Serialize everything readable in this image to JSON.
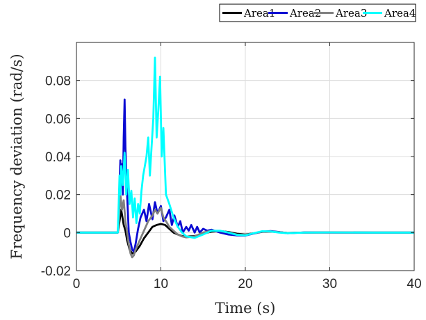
{
  "chart_data": {
    "type": "line",
    "title": "",
    "xlabel": "Time (s)",
    "ylabel": "Frequency deviation (rad/s)",
    "xlim": [
      0,
      40
    ],
    "ylim": [
      -0.02,
      0.1
    ],
    "xticks": [
      0,
      10,
      20,
      30,
      40
    ],
    "xtick_labels": [
      "0",
      "10",
      "20",
      "30",
      "40"
    ],
    "yticks": [
      -0.02,
      0,
      0.02,
      0.04,
      0.06,
      0.08
    ],
    "ytick_labels": [
      "-0.02",
      "0",
      "0.02",
      "0.04",
      "0.06",
      "0.08"
    ],
    "grid": true,
    "legend_position": "top-outside",
    "series": [
      {
        "name": "Area1",
        "color": "#000000",
        "x": [
          0,
          4.9,
          5.0,
          5.3,
          5.6,
          5.8,
          6.0,
          6.3,
          6.6,
          7.0,
          7.5,
          8.0,
          8.5,
          9.0,
          9.5,
          10.0,
          10.5,
          11.0,
          11.5,
          12.0,
          12.5,
          13.0,
          14.0,
          15.0,
          16.0,
          17.0,
          18.0,
          19.0,
          20.0,
          21.0,
          22.0,
          23.0,
          24.0,
          25.0,
          27.0,
          30.0,
          35.0,
          40.0
        ],
        "y": [
          0,
          0,
          0.003,
          0.012,
          0.004,
          0.001,
          -0.004,
          -0.009,
          -0.011,
          -0.01,
          -0.007,
          -0.003,
          0.0,
          0.003,
          0.004,
          0.0045,
          0.004,
          0.002,
          0.0,
          -0.001,
          -0.0018,
          -0.0022,
          -0.0018,
          -0.0005,
          0.0005,
          0.0008,
          0.0003,
          -0.0006,
          -0.001,
          -0.0004,
          0.0004,
          0.0006,
          0.0002,
          -0.0002,
          0.0,
          0.0001,
          0.0,
          0.0
        ]
      },
      {
        "name": "Area2",
        "color": "#0a0ad2",
        "x": [
          0,
          4.9,
          5.0,
          5.1,
          5.2,
          5.3,
          5.4,
          5.5,
          5.6,
          5.7,
          5.8,
          5.9,
          6.0,
          6.1,
          6.2,
          6.4,
          6.6,
          6.8,
          7.0,
          7.3,
          7.6,
          8.0,
          8.3,
          8.6,
          9.0,
          9.3,
          9.6,
          10.0,
          10.3,
          10.6,
          11.0,
          11.3,
          11.6,
          12.0,
          12.3,
          12.6,
          13.0,
          13.3,
          13.6,
          14.0,
          14.3,
          14.6,
          15.0,
          15.5,
          16.0,
          17.0,
          18.0,
          19.0,
          20.0,
          21.0,
          22.0,
          23.0,
          24.0,
          25.0,
          27.0,
          30.0,
          35.0,
          40.0
        ],
        "y": [
          0,
          0,
          0.01,
          0.025,
          0.038,
          0.03,
          0.036,
          0.02,
          0.05,
          0.07,
          0.045,
          0.03,
          0.02,
          0.01,
          0.0,
          -0.005,
          -0.009,
          -0.01,
          -0.006,
          0.002,
          0.008,
          0.012,
          0.006,
          0.015,
          0.007,
          0.016,
          0.01,
          0.014,
          0.006,
          0.008,
          0.012,
          0.004,
          0.009,
          0.003,
          0.006,
          0.0,
          0.003,
          0.001,
          0.004,
          0.0,
          0.003,
          0.0,
          0.002,
          0.001,
          0.0015,
          0.0,
          -0.001,
          -0.0015,
          -0.0016,
          -0.0005,
          0.0005,
          0.0008,
          0.0003,
          -0.0003,
          0.0001,
          0.0,
          0.0,
          0.0
        ]
      },
      {
        "name": "Area3",
        "color": "#808080",
        "x": [
          0,
          4.9,
          5.0,
          5.2,
          5.4,
          5.6,
          5.8,
          6.0,
          6.2,
          6.4,
          6.6,
          6.8,
          7.0,
          7.5,
          8.0,
          8.5,
          9.0,
          9.3,
          9.6,
          10.0,
          10.3,
          10.6,
          11.0,
          11.5,
          12.0,
          12.5,
          13.0,
          14.0,
          15.0,
          16.0,
          17.0,
          18.0,
          19.0,
          20.0,
          21.0,
          22.0,
          23.0,
          24.0,
          25.0,
          27.0,
          30.0,
          35.0,
          40.0
        ],
        "y": [
          0,
          0,
          0.005,
          0.02,
          0.012,
          0.017,
          0.006,
          0.0,
          -0.006,
          -0.011,
          -0.013,
          -0.012,
          -0.009,
          -0.004,
          0.001,
          0.006,
          0.009,
          0.012,
          0.01,
          0.013,
          0.008,
          0.006,
          0.003,
          0.001,
          -0.001,
          -0.002,
          -0.0025,
          -0.002,
          0.0,
          0.001,
          0.0008,
          0.0,
          -0.001,
          -0.0012,
          -0.0004,
          0.0005,
          0.0006,
          0.0002,
          -0.0002,
          0.0,
          0.0,
          0.0,
          0.0
        ]
      },
      {
        "name": "Area4",
        "color": "#00ffff",
        "x": [
          0,
          4.9,
          5.0,
          5.1,
          5.2,
          5.3,
          5.5,
          5.7,
          5.9,
          6.1,
          6.3,
          6.5,
          6.7,
          6.9,
          7.1,
          7.3,
          7.5,
          7.7,
          7.9,
          8.1,
          8.3,
          8.5,
          8.7,
          8.9,
          9.1,
          9.3,
          9.5,
          9.7,
          9.9,
          10.1,
          10.3,
          10.6,
          11.0,
          11.5,
          12.0,
          12.5,
          13.0,
          14.0,
          15.0,
          16.0,
          17.0,
          18.0,
          19.0,
          20.0,
          21.0,
          22.0,
          23.0,
          24.0,
          25.0,
          27.0,
          30.0,
          35.0,
          40.0
        ],
        "y": [
          0,
          0,
          0.015,
          0.03,
          0.02,
          0.035,
          0.025,
          0.042,
          0.02,
          0.033,
          0.015,
          0.022,
          0.008,
          0.018,
          0.005,
          0.015,
          0.01,
          0.022,
          0.03,
          0.035,
          0.04,
          0.05,
          0.03,
          0.045,
          0.06,
          0.092,
          0.05,
          0.065,
          0.082,
          0.04,
          0.055,
          0.02,
          0.015,
          0.008,
          0.003,
          0.0,
          -0.002,
          -0.0028,
          -0.001,
          0.001,
          0.001,
          0.0,
          -0.0012,
          -0.0015,
          -0.0003,
          0.0007,
          0.0006,
          0.0,
          -0.0003,
          0.0,
          0.0001,
          0.0,
          0.0
        ]
      }
    ]
  }
}
